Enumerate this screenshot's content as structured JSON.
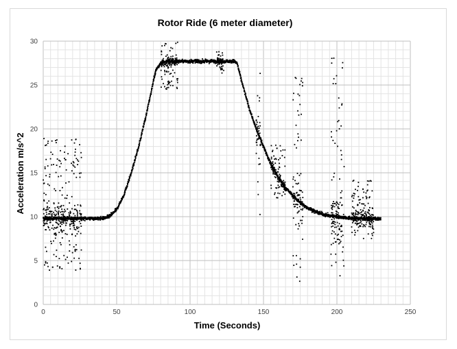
{
  "chart_data": {
    "type": "scatter",
    "title": "Rotor Ride (6 meter diameter)",
    "xlabel": "Time (Seconds)",
    "ylabel": "Acceleration m/s^2",
    "xlim": [
      0,
      250
    ],
    "ylim": [
      0,
      30
    ],
    "x_ticks": [
      0,
      50,
      100,
      150,
      200,
      250
    ],
    "y_ticks": [
      0,
      5,
      10,
      15,
      20,
      25,
      30
    ],
    "x_tick_labels": [
      "0",
      "50",
      "100",
      "150",
      "200",
      "250"
    ],
    "y_tick_labels": [
      "0",
      "5",
      "10",
      "15",
      "20",
      "25",
      "30"
    ],
    "grid": true,
    "legend": "none",
    "marker_color": "#000000",
    "series": [
      {
        "x": [
          0,
          5,
          10,
          15,
          20,
          25,
          30,
          35,
          40,
          45,
          50,
          55,
          60,
          65,
          70,
          73,
          75,
          77,
          80,
          85,
          90,
          95,
          100,
          105,
          110,
          115,
          120,
          125,
          130,
          132,
          135,
          140,
          145,
          150,
          155,
          160,
          165,
          170,
          175,
          180,
          185,
          190,
          195,
          200,
          205,
          210,
          215,
          220,
          225,
          230
        ],
        "y": [
          9.8,
          9.8,
          9.8,
          9.8,
          9.8,
          9.8,
          9.8,
          9.8,
          9.8,
          10.0,
          10.8,
          12.5,
          15.0,
          18.0,
          21.5,
          23.8,
          25.5,
          26.8,
          27.5,
          27.7,
          27.7,
          27.7,
          27.7,
          27.7,
          27.7,
          27.7,
          27.7,
          27.7,
          27.7,
          27.5,
          25.5,
          22.5,
          20.0,
          18.0,
          16.0,
          14.5,
          13.3,
          12.4,
          11.6,
          11.0,
          10.6,
          10.3,
          10.1,
          10.0,
          9.9,
          9.8,
          9.8,
          9.8,
          9.8,
          9.7
        ]
      }
    ],
    "noise_regions": [
      {
        "x": [
          0,
          26
        ],
        "y_spread": [
          3.7,
          19.0
        ]
      },
      {
        "x": [
          80,
          92
        ],
        "y_spread": [
          24.5,
          29.9
        ]
      },
      {
        "x": [
          118,
          123
        ],
        "y_spread": [
          26.3,
          28.9
        ]
      },
      {
        "x": [
          145,
          148
        ],
        "y_spread": [
          9.6,
          28.3
        ]
      },
      {
        "x": [
          155,
          165
        ],
        "y_spread": [
          12.0,
          18.2
        ]
      },
      {
        "x": [
          170,
          177
        ],
        "y_spread": [
          2.0,
          27.2
        ]
      },
      {
        "x": [
          196,
          205
        ],
        "y_spread": [
          2.5,
          29.2
        ]
      },
      {
        "x": [
          210,
          225
        ],
        "y_spread": [
          7.5,
          14.2
        ]
      }
    ]
  }
}
